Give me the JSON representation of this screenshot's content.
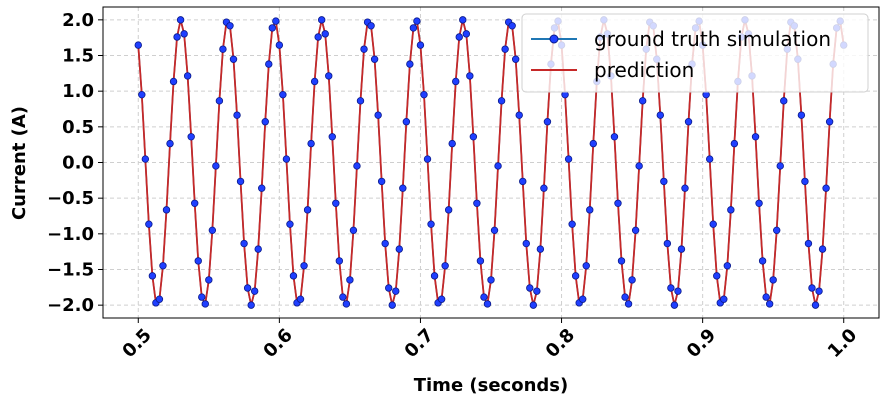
{
  "chart_data": {
    "type": "line",
    "title": "",
    "xlabel": "Time (seconds)",
    "ylabel": "Current (A)",
    "xlim": [
      0.475,
      1.025
    ],
    "ylim": [
      -2.18,
      2.18
    ],
    "x_ticks": [
      0.5,
      0.6,
      0.7,
      0.8,
      0.9,
      1.0
    ],
    "x_tick_labels": [
      "0.5",
      "0.6",
      "0.7",
      "0.8",
      "0.9",
      "1.0"
    ],
    "y_ticks": [
      2.0,
      1.5,
      1.0,
      0.5,
      0.0,
      -0.5,
      -1.0,
      -1.5,
      -2.0
    ],
    "y_tick_labels": [
      "2.0",
      "1.5",
      "1.0",
      "0.5",
      "0.0",
      "−0.5",
      "−1.0",
      "−1.5",
      "−2.0"
    ],
    "grid": true,
    "legend_position": "top-right",
    "signal": {
      "amplitude": 2.0,
      "frequency_hz": 30,
      "phase_rad": 2.175,
      "t_start": 0.5,
      "t_end": 1.0,
      "sample_step": 0.0025
    },
    "series": [
      {
        "name": "ground truth simulation",
        "style": "line-with-markers",
        "line_color": "#1f77b4",
        "marker_face": "#1f3fff",
        "marker_edge": "#0a1a8a"
      },
      {
        "name": "prediction",
        "style": "line",
        "line_color": "#c62828"
      }
    ]
  }
}
